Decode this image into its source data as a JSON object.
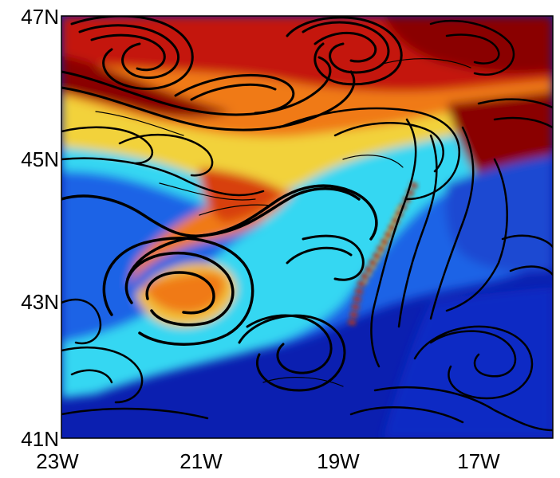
{
  "map": {
    "y_ticks": [
      "47N",
      "45N",
      "43N",
      "41N"
    ],
    "x_ticks": [
      "23W",
      "21W",
      "19W",
      "17W"
    ],
    "colors": {
      "deep_blue": "#0b1fb0",
      "mid_blue": "#1f63e6",
      "cyan": "#36d7f2",
      "yellow": "#f2d23a",
      "orange": "#f07a18",
      "red": "#c41808",
      "dark_red": "#8a0000",
      "streamline": "#000000"
    }
  }
}
